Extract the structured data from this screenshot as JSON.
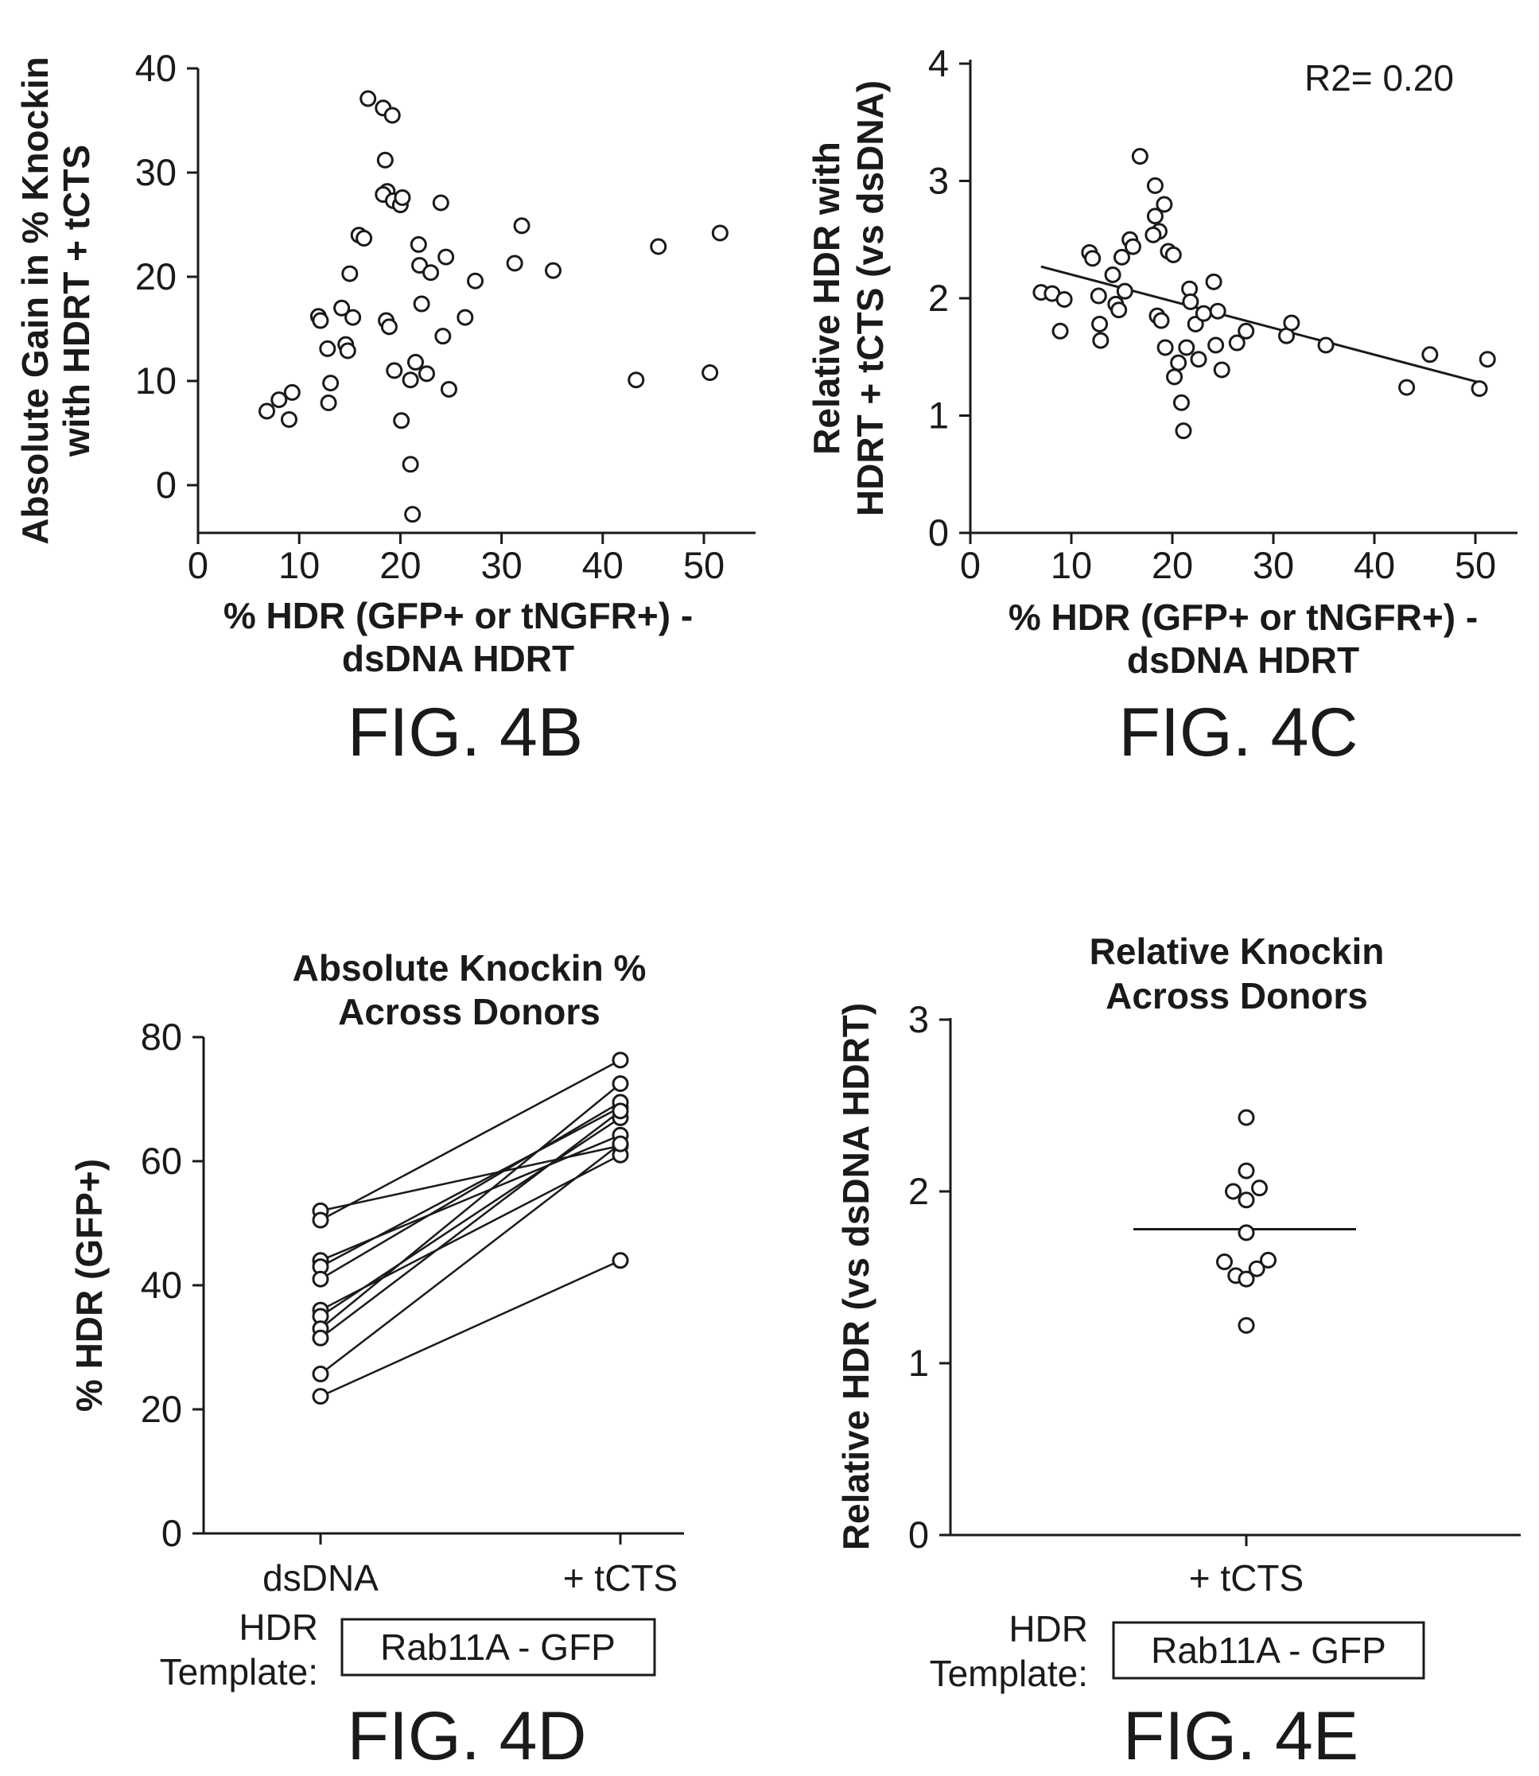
{
  "chart_data": [
    {
      "type": "scatter",
      "figure_label": "FIG. 4B",
      "title": "",
      "xlabel_lines": [
        "% HDR (GFP+ or tNGFR+) -",
        "dsDNA HDRT"
      ],
      "ylabel_lines": [
        "Absolute Gain in % Knockin",
        "with HDRT + tCTS"
      ],
      "xlim": [
        0,
        53
      ],
      "ylim": [
        -5,
        40
      ],
      "xticks": [
        0,
        10,
        20,
        30,
        40,
        50
      ],
      "yticks": [
        0,
        10,
        20,
        30,
        40
      ],
      "points": [
        [
          6.8,
          7.1
        ],
        [
          8.0,
          8.2
        ],
        [
          9.0,
          6.3
        ],
        [
          9.3,
          8.9
        ],
        [
          11.9,
          16.2
        ],
        [
          12.1,
          15.8
        ],
        [
          12.8,
          13.1
        ],
        [
          12.9,
          7.9
        ],
        [
          13.1,
          9.8
        ],
        [
          14.2,
          17.0
        ],
        [
          14.6,
          13.5
        ],
        [
          14.8,
          12.9
        ],
        [
          15.0,
          20.3
        ],
        [
          15.3,
          16.1
        ],
        [
          15.9,
          24.0
        ],
        [
          16.4,
          23.7
        ],
        [
          16.8,
          37.1
        ],
        [
          18.3,
          36.2
        ],
        [
          19.2,
          35.5
        ],
        [
          18.5,
          31.2
        ],
        [
          18.7,
          28.2
        ],
        [
          18.6,
          15.8
        ],
        [
          18.9,
          15.2
        ],
        [
          18.3,
          27.9
        ],
        [
          19.3,
          27.3
        ],
        [
          20.0,
          26.9
        ],
        [
          20.2,
          27.6
        ],
        [
          19.4,
          11.0
        ],
        [
          20.1,
          6.2
        ],
        [
          21.0,
          2.0
        ],
        [
          21.2,
          -2.8
        ],
        [
          21.0,
          10.1
        ],
        [
          21.5,
          11.8
        ],
        [
          21.8,
          23.1
        ],
        [
          21.9,
          21.1
        ],
        [
          22.1,
          17.4
        ],
        [
          22.6,
          10.7
        ],
        [
          23.0,
          20.4
        ],
        [
          24.0,
          27.1
        ],
        [
          24.2,
          14.3
        ],
        [
          24.5,
          21.9
        ],
        [
          24.8,
          9.2
        ],
        [
          26.4,
          16.1
        ],
        [
          27.4,
          19.6
        ],
        [
          31.3,
          21.3
        ],
        [
          32.0,
          24.9
        ],
        [
          35.1,
          20.6
        ],
        [
          43.3,
          10.1
        ],
        [
          45.5,
          22.9
        ],
        [
          50.6,
          10.8
        ],
        [
          51.6,
          24.2
        ]
      ]
    },
    {
      "type": "scatter",
      "figure_label": "FIG. 4C",
      "title": "",
      "annotation": "R2= 0.20",
      "xlabel_lines": [
        "% HDR (GFP+ or tNGFR+) -",
        "dsDNA HDRT"
      ],
      "ylabel_lines": [
        "Relative HDR with",
        "HDRT + tCTS (vs dsDNA)"
      ],
      "xlim": [
        0,
        53
      ],
      "ylim": [
        0,
        4
      ],
      "xticks": [
        0,
        10,
        20,
        30,
        40,
        50
      ],
      "yticks": [
        0,
        1,
        2,
        3,
        4
      ],
      "fit_line": [
        [
          7,
          2.27
        ],
        [
          50.5,
          1.28
        ]
      ],
      "points": [
        [
          7.0,
          2.05
        ],
        [
          8.1,
          2.04
        ],
        [
          8.9,
          1.72
        ],
        [
          9.3,
          1.99
        ],
        [
          11.8,
          2.39
        ],
        [
          12.1,
          2.34
        ],
        [
          12.7,
          2.02
        ],
        [
          12.8,
          1.78
        ],
        [
          12.9,
          1.64
        ],
        [
          14.1,
          2.2
        ],
        [
          14.4,
          1.95
        ],
        [
          14.7,
          1.9
        ],
        [
          15.0,
          2.35
        ],
        [
          15.3,
          2.06
        ],
        [
          15.8,
          2.5
        ],
        [
          16.1,
          2.44
        ],
        [
          16.8,
          3.21
        ],
        [
          18.3,
          2.96
        ],
        [
          18.3,
          2.7
        ],
        [
          18.7,
          2.57
        ],
        [
          18.1,
          2.54
        ],
        [
          19.2,
          2.8
        ],
        [
          19.6,
          2.4
        ],
        [
          20.1,
          2.37
        ],
        [
          18.5,
          1.85
        ],
        [
          18.9,
          1.81
        ],
        [
          19.3,
          1.58
        ],
        [
          20.2,
          1.33
        ],
        [
          20.6,
          1.45
        ],
        [
          20.9,
          1.11
        ],
        [
          21.1,
          0.87
        ],
        [
          21.4,
          1.58
        ],
        [
          21.7,
          2.08
        ],
        [
          21.8,
          1.97
        ],
        [
          22.3,
          1.78
        ],
        [
          22.6,
          1.48
        ],
        [
          23.1,
          1.87
        ],
        [
          24.1,
          2.14
        ],
        [
          24.3,
          1.6
        ],
        [
          24.5,
          1.89
        ],
        [
          24.9,
          1.39
        ],
        [
          26.4,
          1.62
        ],
        [
          27.3,
          1.72
        ],
        [
          31.3,
          1.68
        ],
        [
          31.8,
          1.79
        ],
        [
          35.2,
          1.6
        ],
        [
          43.2,
          1.24
        ],
        [
          45.5,
          1.52
        ],
        [
          50.4,
          1.23
        ],
        [
          51.2,
          1.48
        ]
      ]
    },
    {
      "type": "line",
      "figure_label": "FIG. 4D",
      "title_lines": [
        "Absolute Knockin %",
        "Across Donors"
      ],
      "ylabel": "% HDR (GFP+)",
      "categories": [
        "dsDNA",
        "+ tCTS"
      ],
      "ylim": [
        0,
        80
      ],
      "yticks": [
        0,
        20,
        40,
        60,
        80
      ],
      "template_label_lines": [
        "HDR",
        "Template:"
      ],
      "template_box": "Rab11A - GFP",
      "pairs": [
        [
          52,
          62.5
        ],
        [
          50.5,
          76.3
        ],
        [
          44,
          64.2
        ],
        [
          43,
          68.7
        ],
        [
          41,
          69.5
        ],
        [
          36,
          61
        ],
        [
          35,
          67
        ],
        [
          33,
          72.5
        ],
        [
          31.5,
          68.1
        ],
        [
          25.7,
          62.8
        ],
        [
          22.1,
          44
        ]
      ]
    },
    {
      "type": "scatter",
      "figure_label": "FIG. 4E",
      "title_lines": [
        "Relative Knockin",
        "Across Donors"
      ],
      "ylabel": "Relative HDR (vs dsDNA HDRT)",
      "categories": [
        "+ tCTS"
      ],
      "ylim": [
        0,
        3
      ],
      "yticks": [
        0,
        1,
        2,
        3
      ],
      "mean": 1.78,
      "template_label_lines": [
        "HDR",
        "Template:"
      ],
      "template_box": "Rab11A - GFP",
      "points": [
        [
          0,
          2.43
        ],
        [
          0,
          2.12
        ],
        [
          -0.15,
          2.0
        ],
        [
          0,
          1.95
        ],
        [
          0.15,
          2.02
        ],
        [
          0,
          1.76
        ],
        [
          -0.25,
          1.59
        ],
        [
          -0.12,
          1.51
        ],
        [
          0,
          1.49
        ],
        [
          0.12,
          1.55
        ],
        [
          0.25,
          1.6
        ],
        [
          0,
          1.22
        ]
      ]
    }
  ]
}
